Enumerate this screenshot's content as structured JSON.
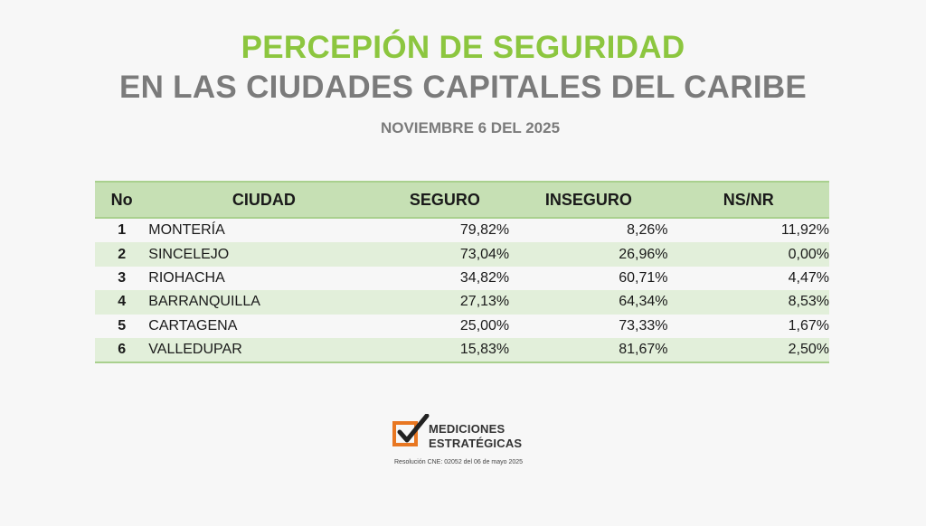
{
  "header": {
    "title_line1": "PERCEPIÓN DE SEGURIDAD",
    "title_line2": "EN LAS CIUDADES CAPITALES DEL CARIBE",
    "date": "NOVIEMBRE 6 DEL 2025"
  },
  "table": {
    "columns": [
      "No",
      "CIUDAD",
      "SEGURO",
      "INSEGURO",
      "NS/NR"
    ],
    "rows": [
      {
        "no": "1",
        "city": "MONTERÍA",
        "seguro": "79,82%",
        "inseguro": "8,26%",
        "nsnr": "11,92%"
      },
      {
        "no": "2",
        "city": "SINCELEJO",
        "seguro": "73,04%",
        "inseguro": "26,96%",
        "nsnr": "0,00%"
      },
      {
        "no": "3",
        "city": "RIOHACHA",
        "seguro": "34,82%",
        "inseguro": "60,71%",
        "nsnr": "4,47%"
      },
      {
        "no": "4",
        "city": "BARRANQUILLA",
        "seguro": "27,13%",
        "inseguro": "64,34%",
        "nsnr": "8,53%"
      },
      {
        "no": "5",
        "city": "CARTAGENA",
        "seguro": "25,00%",
        "inseguro": "73,33%",
        "nsnr": "1,67%"
      },
      {
        "no": "6",
        "city": "VALLEDUPAR",
        "seguro": "15,83%",
        "inseguro": "81,67%",
        "nsnr": "2,50%"
      }
    ]
  },
  "logo": {
    "icon": "checkbox-check-icon",
    "line1": "MEDICIONES",
    "line2": "ESTRATÉGICAS",
    "resolution": "Resolución CNE: 02052 del 06 de mayo 2025",
    "accent_color": "#e87722"
  },
  "colors": {
    "title_green": "#8cc63f",
    "title_gray": "#7b7b7b",
    "header_fill": "#c6e0b4",
    "alt_row_fill": "#e2efda"
  }
}
